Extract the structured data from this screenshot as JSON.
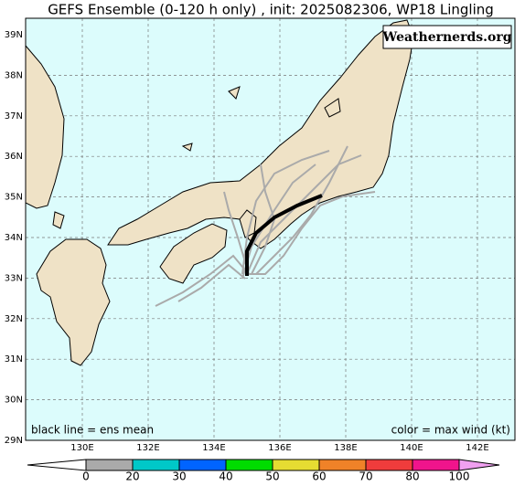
{
  "title": "GEFS Ensemble (0-120 h only) , init: 2025082306, WP18 Lingling",
  "watermark": "Weathernerds.org",
  "lat_labels": [
    "39N",
    "38N",
    "37N",
    "36N",
    "35N",
    "34N",
    "33N",
    "32N",
    "31N",
    "30N",
    "29N"
  ],
  "lon_labels": [
    "130E",
    "132E",
    "134E",
    "136E",
    "138E",
    "140E",
    "142E"
  ],
  "footer_left": "black line = ens mean",
  "footer_right": "color = max wind (kt)",
  "colorbar": {
    "ticks": [
      0,
      20,
      30,
      40,
      50,
      60,
      70,
      80,
      100
    ],
    "colors": [
      "#ffffff",
      "#aaaaaa",
      "#00c8c8",
      "#0064ff",
      "#00dc00",
      "#e6dc32",
      "#f08228",
      "#f03c3c",
      "#f0148c",
      "#f0a0f0"
    ]
  }
}
